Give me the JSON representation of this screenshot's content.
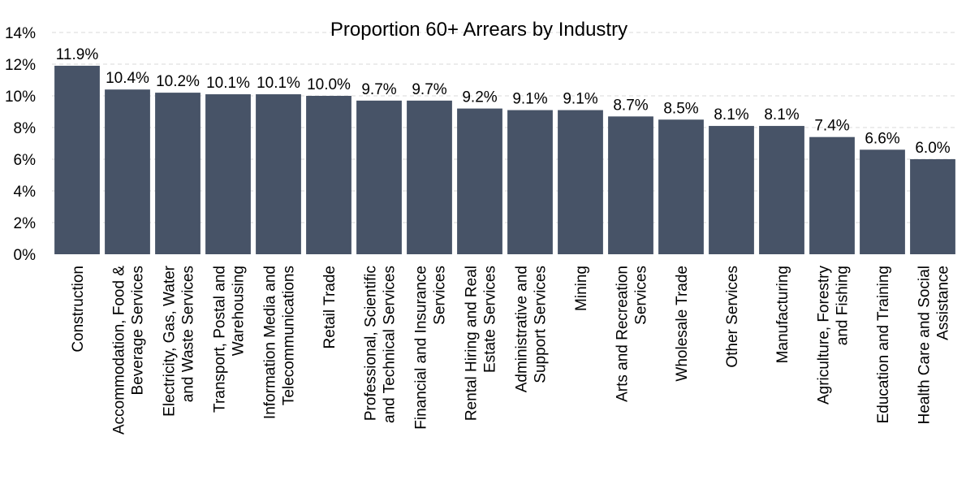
{
  "chart_data": {
    "type": "bar",
    "title": "Proportion 60+ Arrears by Industry",
    "xlabel": "",
    "ylabel": "",
    "ylim": [
      0,
      14
    ],
    "y_ticks": [
      "0%",
      "2%",
      "4%",
      "6%",
      "8%",
      "10%",
      "12%",
      "14%"
    ],
    "grid": true,
    "bar_color": "#475367",
    "categories": [
      "Construction",
      "Accommodation, Food & Beverage Services",
      "Electricity, Gas, Water and Waste Services",
      "Transport, Postal and Warehousing",
      "Information Media and Telecommunications",
      "Retail Trade",
      "Professional, Scientific and Technical Services",
      "Financial and Insurance Services",
      "Rental Hiring and Real Estate Services",
      "Administrative and Support Services",
      "Mining",
      "Arts and Recreation Services",
      "Wholesale Trade",
      "Other Services",
      "Manufacturing",
      "Agriculture, Forestry and Fishing",
      "Education and Training",
      "Health Care and Social Assistance"
    ],
    "values": [
      11.9,
      10.4,
      10.2,
      10.1,
      10.1,
      10.0,
      9.7,
      9.7,
      9.2,
      9.1,
      9.1,
      8.7,
      8.5,
      8.1,
      8.1,
      7.4,
      6.6,
      6.0
    ],
    "data_labels": [
      "11.9%",
      "10.4%",
      "10.2%",
      "10.1%",
      "10.1%",
      "10.0%",
      "9.7%",
      "9.7%",
      "9.2%",
      "9.1%",
      "9.1%",
      "8.7%",
      "8.5%",
      "8.1%",
      "8.1%",
      "7.4%",
      "6.6%",
      "6.0%"
    ]
  }
}
